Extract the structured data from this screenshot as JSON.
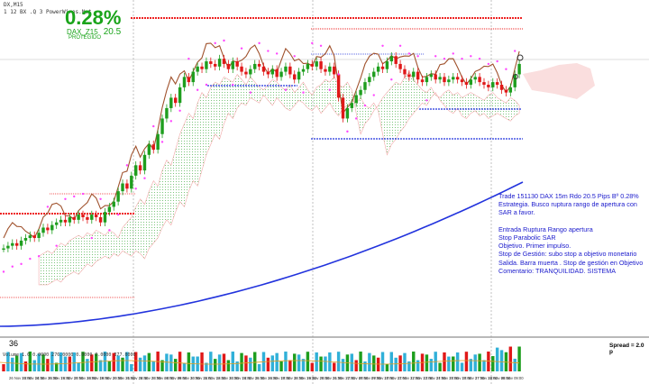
{
  "header": {
    "line1": "DX,M15",
    "line2": "1 12 BX .Q 3 PowerWires.Net",
    "percent": "0.28%",
    "symbol": "DAX_Z15",
    "pips": "20.5",
    "status": "PROTEGIDO"
  },
  "notes": [
    "Trade 151130 DAX 15m Rdo 20.5 Pips Bº 0.28%",
    "Estrategia. Busco ruptura rango de apertura con",
    "SAR a favor.",
    "",
    "Entrada Ruptura Rango apertura",
    "Stop Parabolic SAR",
    "Objetivo. Primer impulso.",
    "Stop de Gestión: subo stop a objetivo monetario",
    "Salida. Barra muerta . Stop de gestión en Objetivo",
    "Comentario: TRANQUILIDAD. SISTEMA"
  ],
  "spread_label": "Spread = 2.0 p",
  "sub_label": "36",
  "volume_header": "Volume 1.0 0.0000 276.0000 0.0000 0.0000 377.0000",
  "colors": {
    "bull": "#1e9e1e",
    "bear": "#e01818",
    "ma_long": "#2233dd",
    "ma_short": "#a0522d",
    "sar": "#ff44ff",
    "level_red": "#ee2222",
    "level_blue": "#2233dd",
    "cloud_green": "#6fbf6f",
    "cloud_pink": "#f0a0a0",
    "text_blue": "#1a1acc",
    "text_green": "#1aa41a"
  },
  "chart_data": {
    "type": "candlestick",
    "title": "DAX_Z15 M15",
    "x_tick_labels": [
      "26 Nov 13:00",
      "26 Nov 14:30",
      "26 Nov 15:30",
      "26 Nov 16:30",
      "26 Nov 17:00",
      "26 Nov 18:00",
      "26 Nov 19:00",
      "26 Nov 20:30",
      "26 Nov 21:00",
      "26 Nov 22:30",
      "26 Nov 23:00",
      "26 Nov 08:00",
      "26 Nov 09:00",
      "26 Nov 10:00",
      "26 Nov 11:00",
      "26 Nov 12:30",
      "26 Nov 13:30",
      "26 Nov 14:30",
      "26 Nov 15:30",
      "26 Nov 16:30",
      "26 Nov 17:30",
      "26 Nov 18:30",
      "26 Nov 19:30",
      "26 Nov 20:30",
      "26 Nov 21:30",
      "26 Nov 22:30",
      "27 Nov 08:00",
      "27 Nov 09:00",
      "27 Nov 10:00",
      "27 Nov 11:00",
      "27 Nov 12:00",
      "27 Nov 13:00",
      "27 Nov 14:00",
      "27 Nov 15:00",
      "27 Nov 16:00",
      "27 Nov 17:00",
      "27 Nov 18:00",
      "28 Nov 08:00",
      "28 Nov 09:00"
    ],
    "closes": [
      30,
      31,
      32,
      31,
      33,
      34,
      35,
      34,
      36,
      38,
      37,
      39,
      40,
      41,
      40,
      42,
      41,
      43,
      42,
      41,
      43,
      42,
      40,
      44,
      46,
      48,
      52,
      55,
      53,
      58,
      62,
      60,
      66,
      70,
      68,
      74,
      80,
      84,
      88,
      86,
      92,
      96,
      94,
      98,
      100,
      99,
      102,
      101,
      100,
      103,
      101,
      99,
      102,
      100,
      98,
      97,
      99,
      101,
      100,
      98,
      97,
      99,
      96,
      98,
      100,
      97,
      95,
      98,
      99,
      101,
      100,
      102,
      99,
      98,
      100,
      97,
      88,
      80,
      84,
      86,
      89,
      91,
      94,
      96,
      98,
      100,
      99,
      102,
      104,
      101,
      99,
      97,
      96,
      98,
      95,
      94,
      96,
      97,
      95,
      96,
      94,
      95,
      96,
      95,
      94,
      93,
      95,
      96,
      94,
      93,
      92,
      94,
      93,
      91,
      90,
      92,
      97,
      101
    ],
    "ylim": [
      0,
      110
    ],
    "grid": false,
    "legend": "none"
  }
}
